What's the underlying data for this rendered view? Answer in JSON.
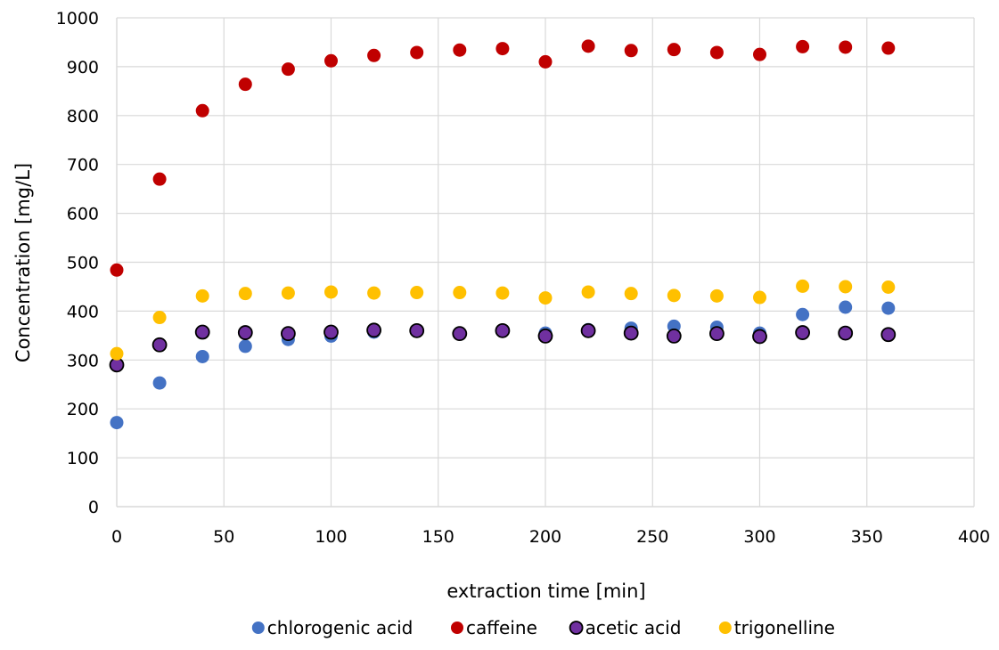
{
  "chart_data": {
    "type": "scatter",
    "title": "",
    "xlabel": "extraction time [min]",
    "ylabel": "Concentration [mg/L]",
    "xlim": [
      0,
      400
    ],
    "ylim": [
      0,
      1000
    ],
    "x_ticks": [
      0,
      50,
      100,
      150,
      200,
      250,
      300,
      350,
      400
    ],
    "y_ticks": [
      0,
      100,
      200,
      300,
      400,
      500,
      600,
      700,
      800,
      900,
      1000
    ],
    "grid": true,
    "legend_position": "bottom",
    "x": [
      0,
      20,
      40,
      60,
      80,
      100,
      120,
      140,
      160,
      180,
      200,
      220,
      240,
      260,
      280,
      300,
      320,
      340,
      360
    ],
    "series": [
      {
        "name": "chlorogenic acid",
        "color": "#4472c4",
        "outline": false,
        "values": [
          172,
          253,
          307,
          328,
          342,
          349,
          357,
          360,
          355,
          359,
          355,
          362,
          365,
          369,
          367,
          355,
          393,
          408,
          406
        ]
      },
      {
        "name": "caffeine",
        "color": "#c00000",
        "outline": false,
        "values": [
          484,
          670,
          810,
          864,
          895,
          912,
          923,
          929,
          934,
          937,
          910,
          942,
          933,
          935,
          929,
          925,
          941,
          940,
          938
        ]
      },
      {
        "name": "acetic acid",
        "color": "#7030a0",
        "outline": true,
        "values": [
          290,
          331,
          357,
          356,
          354,
          357,
          361,
          360,
          354,
          360,
          349,
          360,
          355,
          349,
          354,
          348,
          356,
          355,
          352
        ]
      },
      {
        "name": "trigonelline",
        "color": "#ffc000",
        "outline": false,
        "values": [
          313,
          387,
          431,
          436,
          437,
          439,
          437,
          438,
          438,
          437,
          427,
          439,
          436,
          432,
          431,
          428,
          451,
          450,
          449
        ]
      }
    ]
  }
}
